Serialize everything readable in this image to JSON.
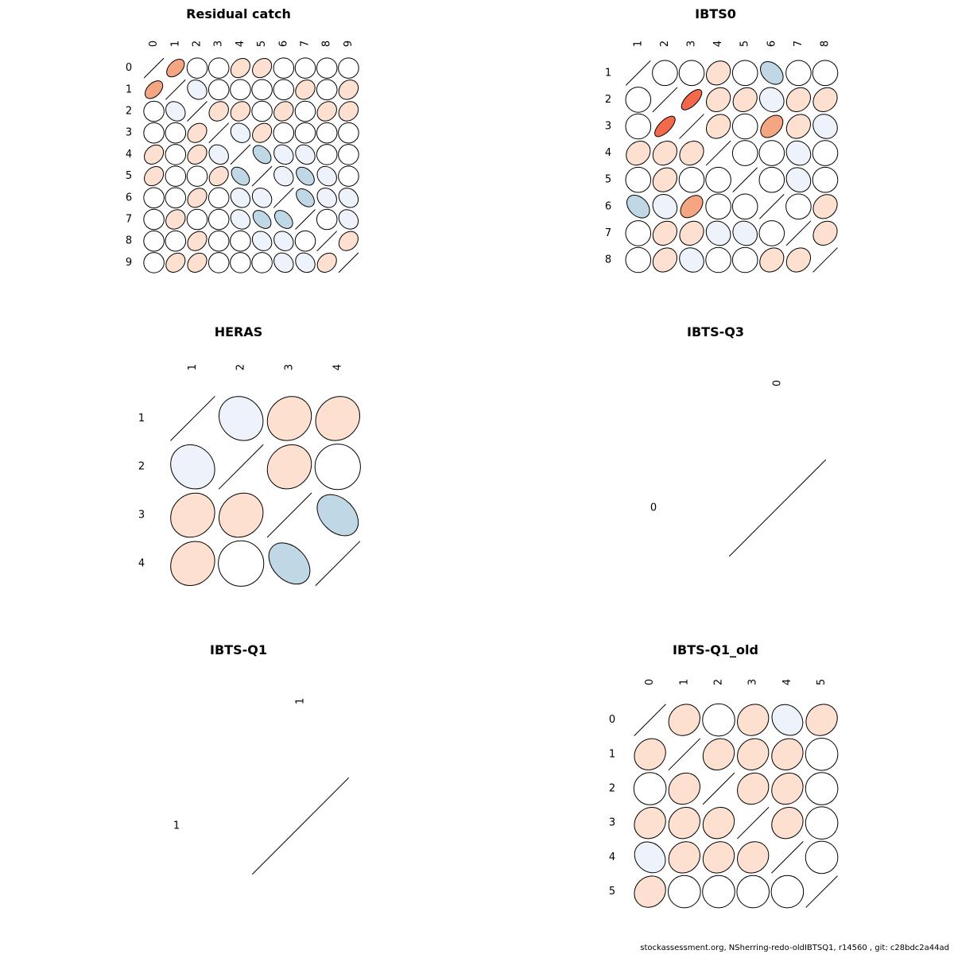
{
  "footer": "stockassessment.org, NSherring-redo-oldIBTSQ1, r14560 , git: c28bdc2a44ad",
  "palette": [
    "#ca0020",
    "#f4a582",
    "#fde0d0",
    "#ffffff",
    "#eef2fb",
    "#c0d7e6",
    "#0571b0"
  ],
  "chart_data": [
    {
      "type": "heatmap",
      "title": "Residual catch",
      "labels": [
        "0",
        "1",
        "2",
        "3",
        "4",
        "5",
        "6",
        "7",
        "8",
        "9"
      ],
      "values": [
        [
          1,
          0.4,
          0,
          0,
          0.2,
          0.2,
          0,
          0,
          0,
          0
        ],
        [
          0.4,
          1,
          -0.15,
          0,
          0,
          0,
          0,
          0.15,
          0,
          0.15
        ],
        [
          0,
          -0.15,
          1,
          0.15,
          0.15,
          0,
          0.15,
          0,
          0.15,
          0.15
        ],
        [
          0,
          0,
          0.2,
          1,
          -0.15,
          0.2,
          0,
          0,
          0,
          0
        ],
        [
          0.2,
          0,
          0.2,
          -0.15,
          1,
          -0.35,
          -0.15,
          -0.15,
          0,
          0
        ],
        [
          0.2,
          0,
          0,
          0.2,
          -0.35,
          1,
          -0.15,
          -0.35,
          -0.15,
          0
        ],
        [
          0,
          0,
          0.2,
          0,
          -0.15,
          -0.15,
          1,
          -0.35,
          -0.15,
          -0.15
        ],
        [
          0,
          0.15,
          0,
          0,
          -0.15,
          -0.35,
          -0.35,
          1,
          0,
          -0.15
        ],
        [
          0,
          0,
          0.2,
          0,
          0,
          -0.15,
          -0.15,
          0,
          1,
          0.2
        ],
        [
          0,
          0.2,
          0.2,
          0,
          0,
          0,
          -0.15,
          -0.15,
          0.2,
          1
        ]
      ]
    },
    {
      "type": "heatmap",
      "title": "IBTS0",
      "labels": [
        "1",
        "2",
        "3",
        "4",
        "5",
        "6",
        "7",
        "8"
      ],
      "values": [
        [
          1,
          0,
          0,
          0.15,
          0,
          -0.3,
          0,
          0
        ],
        [
          0,
          1,
          0.6,
          0.15,
          0.15,
          -0.1,
          0.15,
          0.15
        ],
        [
          0,
          0.6,
          1,
          0.15,
          0,
          0.35,
          0.15,
          -0.1
        ],
        [
          0.15,
          0.15,
          0.15,
          1,
          0,
          0,
          -0.1,
          0
        ],
        [
          0,
          0.15,
          0,
          0,
          1,
          0,
          -0.1,
          0
        ],
        [
          -0.3,
          -0.1,
          0.35,
          0,
          0,
          1,
          0,
          0.15
        ],
        [
          0,
          0.15,
          0.15,
          -0.1,
          -0.1,
          0,
          1,
          0.15
        ],
        [
          0,
          0.15,
          -0.1,
          0,
          0,
          0.15,
          0.15,
          1
        ]
      ]
    },
    {
      "type": "heatmap",
      "title": "HERAS",
      "labels": [
        "1",
        "2",
        "3",
        "4"
      ],
      "values": [
        [
          1,
          -0.1,
          0.1,
          0.1
        ],
        [
          -0.1,
          1,
          0.1,
          0.0
        ],
        [
          0.1,
          0.1,
          1,
          -0.3
        ],
        [
          0.1,
          0.0,
          -0.3,
          1
        ]
      ]
    },
    {
      "type": "heatmap",
      "title": "IBTS-Q3",
      "labels": [
        "0"
      ],
      "values": [
        [
          1
        ]
      ]
    },
    {
      "type": "heatmap",
      "title": "IBTS-Q1",
      "labels": [
        "1"
      ],
      "values": [
        [
          1
        ]
      ]
    },
    {
      "type": "heatmap",
      "title": "IBTS-Q1_old",
      "labels": [
        "0",
        "1",
        "2",
        "3",
        "4",
        "5"
      ],
      "values": [
        [
          1,
          0.1,
          0,
          0.1,
          -0.15,
          0.1
        ],
        [
          0.1,
          1,
          0.1,
          0.1,
          0.1,
          0
        ],
        [
          0,
          0.1,
          1,
          0.1,
          0.1,
          0
        ],
        [
          0.1,
          0.1,
          0.1,
          1,
          0.1,
          0
        ],
        [
          -0.15,
          0.1,
          0.1,
          0.1,
          1,
          0
        ],
        [
          0.1,
          0,
          0,
          0,
          0,
          1
        ]
      ]
    }
  ]
}
